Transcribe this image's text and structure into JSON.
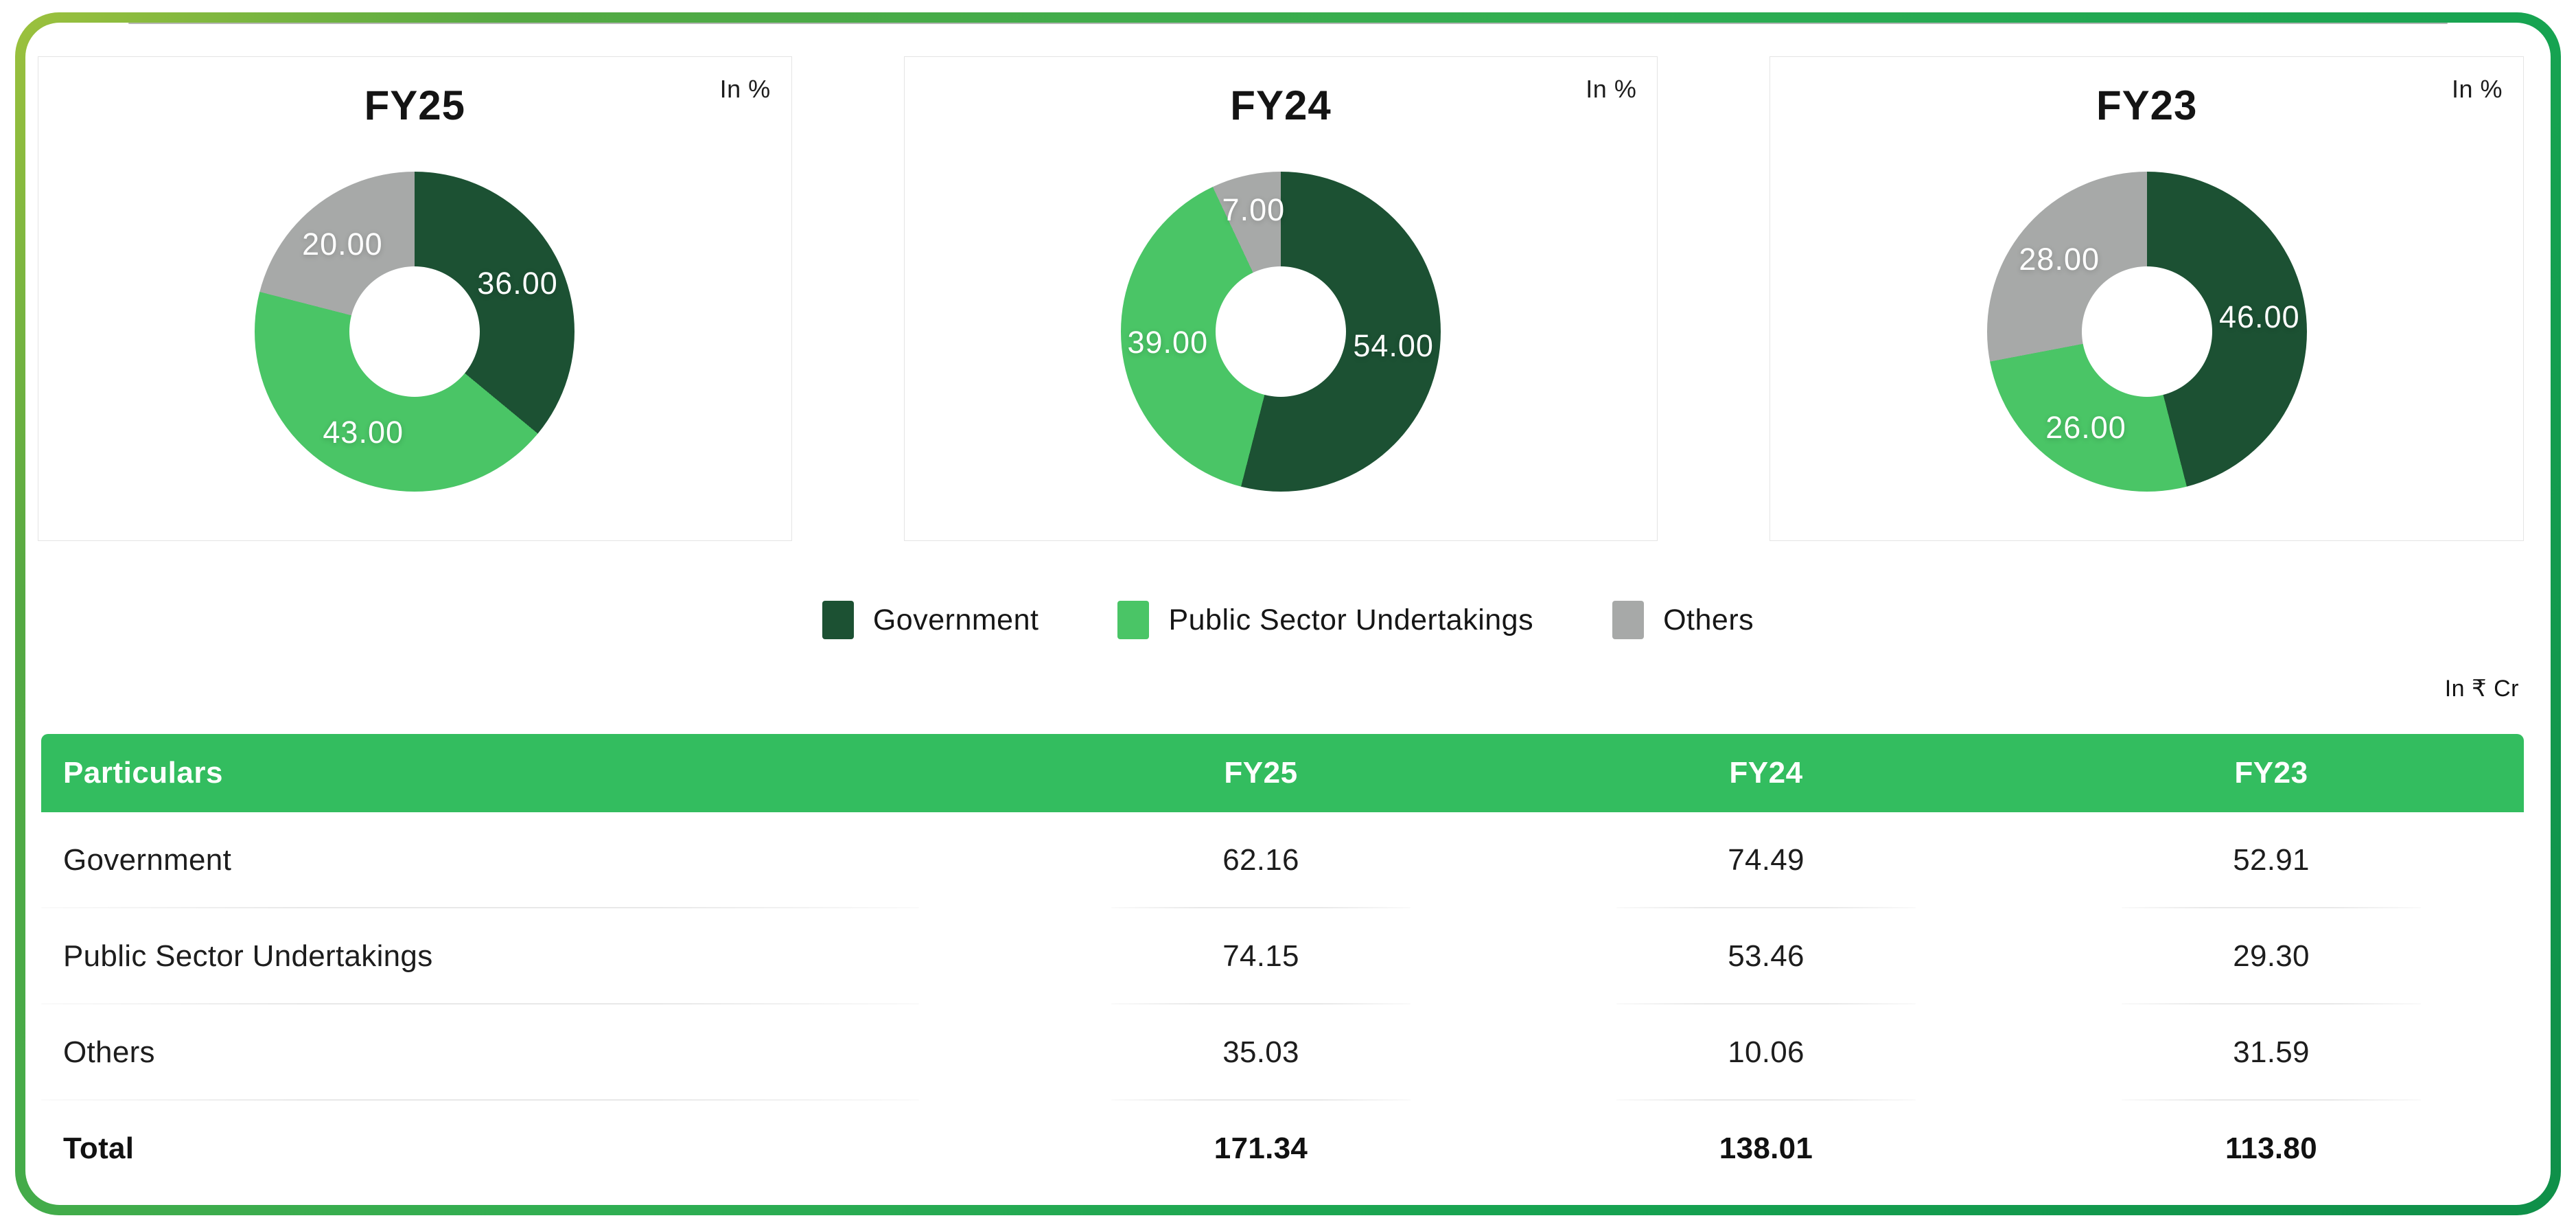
{
  "colors": {
    "government": "#1c5133",
    "psu": "#4ac566",
    "others": "#a7a9a8",
    "header_green": "#33bd5f"
  },
  "unit_percent": "In %",
  "unit_currency": "In ₹ Cr",
  "legend": [
    {
      "label": "Government",
      "color_key": "government"
    },
    {
      "label": "Public Sector Undertakings",
      "color_key": "psu"
    },
    {
      "label": "Others",
      "color_key": "others"
    }
  ],
  "charts": [
    {
      "title": "FY25",
      "slices": [
        {
          "label": "Government",
          "value": 36.0,
          "color_key": "government"
        },
        {
          "label": "Public Sector Undertakings",
          "value": 43.0,
          "color_key": "psu"
        },
        {
          "label": "Others",
          "value": 20.0,
          "color_key": "others"
        }
      ]
    },
    {
      "title": "FY24",
      "slices": [
        {
          "label": "Government",
          "value": 54.0,
          "color_key": "government"
        },
        {
          "label": "Public Sector Undertakings",
          "value": 39.0,
          "color_key": "psu"
        },
        {
          "label": "Others",
          "value": 7.0,
          "color_key": "others"
        }
      ]
    },
    {
      "title": "FY23",
      "slices": [
        {
          "label": "Government",
          "value": 46.0,
          "color_key": "government"
        },
        {
          "label": "Public Sector Undertakings",
          "value": 26.0,
          "color_key": "psu"
        },
        {
          "label": "Others",
          "value": 28.0,
          "color_key": "others"
        }
      ]
    }
  ],
  "table": {
    "headers": [
      "Particulars",
      "FY25",
      "FY24",
      "FY23"
    ],
    "rows": [
      {
        "label": "Government",
        "values": [
          "62.16",
          "74.49",
          "52.91"
        ]
      },
      {
        "label": "Public Sector Undertakings",
        "values": [
          "74.15",
          "53.46",
          "29.30"
        ]
      },
      {
        "label": "Others",
        "values": [
          "35.03",
          "10.06",
          "31.59"
        ]
      }
    ],
    "total": {
      "label": "Total",
      "values": [
        "171.34",
        "138.01",
        "113.80"
      ]
    }
  },
  "chart_data": [
    {
      "type": "pie",
      "title": "FY25",
      "unit": "In %",
      "labels": [
        "Government",
        "Public Sector Undertakings",
        "Others"
      ],
      "values": [
        36.0,
        43.0,
        20.0
      ],
      "legend_position": "bottom"
    },
    {
      "type": "pie",
      "title": "FY24",
      "unit": "In %",
      "labels": [
        "Government",
        "Public Sector Undertakings",
        "Others"
      ],
      "values": [
        54.0,
        39.0,
        7.0
      ],
      "legend_position": "bottom"
    },
    {
      "type": "pie",
      "title": "FY23",
      "unit": "In %",
      "labels": [
        "Government",
        "Public Sector Undertakings",
        "Others"
      ],
      "values": [
        46.0,
        26.0,
        28.0
      ],
      "legend_position": "bottom"
    },
    {
      "type": "table",
      "title": "In ₹ Cr",
      "columns": [
        "Particulars",
        "FY25",
        "FY24",
        "FY23"
      ],
      "rows": [
        [
          "Government",
          62.16,
          74.49,
          52.91
        ],
        [
          "Public Sector Undertakings",
          74.15,
          53.46,
          29.3
        ],
        [
          "Others",
          35.03,
          10.06,
          31.59
        ],
        [
          "Total",
          171.34,
          138.01,
          113.8
        ]
      ]
    }
  ]
}
